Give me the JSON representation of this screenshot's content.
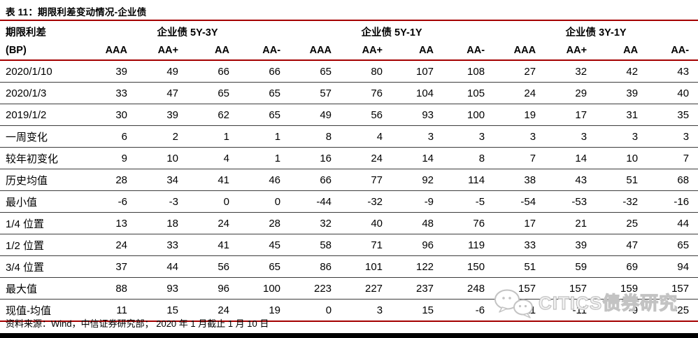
{
  "title": "表 11：期限利差变动情况-企业债",
  "colors": {
    "accent_red": "#a40000",
    "row_separator": "#3c3c3c",
    "bottom_bar": "#000000",
    "watermark_gray": "#c3c3c3"
  },
  "table": {
    "corner_label_line1": "期限利差",
    "corner_label_line2": "(BP)",
    "groups": [
      {
        "label": "企业债 5Y-3Y"
      },
      {
        "label": "企业债 5Y-1Y"
      },
      {
        "label": "企业债 3Y-1Y"
      }
    ],
    "subheaders": [
      "AAA",
      "AA+",
      "AA",
      "AA-",
      "AAA",
      "AA+",
      "AA",
      "AA-",
      "AAA",
      "AA+",
      "AA",
      "AA-"
    ],
    "rows": [
      {
        "label": "2020/1/10",
        "values": [
          39,
          49,
          66,
          66,
          65,
          80,
          107,
          108,
          27,
          32,
          42,
          43
        ]
      },
      {
        "label": "2020/1/3",
        "values": [
          33,
          47,
          65,
          65,
          57,
          76,
          104,
          105,
          24,
          29,
          39,
          40
        ]
      },
      {
        "label": "2019/1/2",
        "values": [
          30,
          39,
          62,
          65,
          49,
          56,
          93,
          100,
          19,
          17,
          31,
          35
        ]
      },
      {
        "label": "一周变化",
        "values": [
          6,
          2,
          1,
          1,
          8,
          4,
          3,
          3,
          3,
          3,
          3,
          3
        ]
      },
      {
        "label": "较年初变化",
        "values": [
          9,
          10,
          4,
          1,
          16,
          24,
          14,
          8,
          7,
          14,
          10,
          7
        ]
      },
      {
        "label": "历史均值",
        "values": [
          28,
          34,
          41,
          46,
          66,
          77,
          92,
          114,
          38,
          43,
          51,
          68
        ]
      },
      {
        "label": "最小值",
        "values": [
          -6,
          -3,
          0,
          0,
          -44,
          -32,
          -9,
          -5,
          -54,
          -53,
          -32,
          -16
        ]
      },
      {
        "label": "1/4 位置",
        "values": [
          13,
          18,
          24,
          28,
          32,
          40,
          48,
          76,
          17,
          21,
          25,
          44
        ]
      },
      {
        "label": "1/2 位置",
        "values": [
          24,
          33,
          41,
          45,
          58,
          71,
          96,
          119,
          33,
          39,
          47,
          65
        ]
      },
      {
        "label": "3/4 位置",
        "values": [
          37,
          44,
          56,
          65,
          86,
          101,
          122,
          150,
          51,
          59,
          69,
          94
        ]
      },
      {
        "label": "最大值",
        "values": [
          88,
          93,
          96,
          100,
          223,
          227,
          237,
          248,
          157,
          157,
          159,
          157
        ]
      },
      {
        "label": "现值-均值",
        "values": [
          11,
          15,
          24,
          19,
          0,
          3,
          15,
          -6,
          -11,
          -11,
          -9,
          -25
        ]
      }
    ]
  },
  "footer": {
    "source": "资料来源：Wind，中信证券研究部；  2020 年 1 月截止 1 月 10 日"
  },
  "watermark": {
    "logo": "wechat-speech-bubbles-icon",
    "text": "CITICS债券研究"
  }
}
